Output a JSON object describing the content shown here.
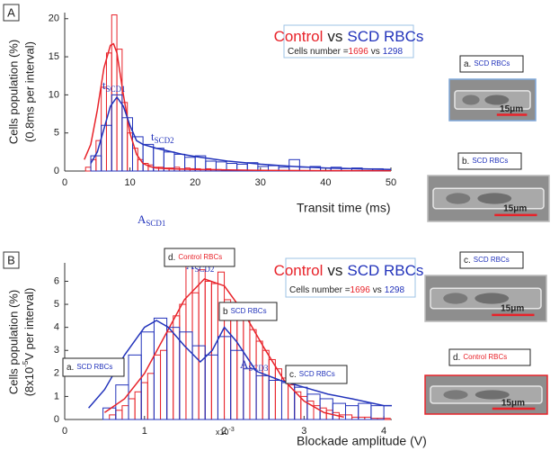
{
  "chart_data": [
    {
      "type": "histogram",
      "panel": "A",
      "ylabel": [
        "Cells population (%)",
        "(0.8ms per interval)"
      ],
      "xlabel": "Transit time (ms)",
      "xlim": [
        0,
        50
      ],
      "ylim": [
        0,
        20.8
      ],
      "xticks": [
        0,
        10,
        20,
        30,
        40,
        50
      ],
      "yticks": [
        0,
        5,
        10,
        15,
        20
      ],
      "series": [
        {
          "color": "#e8232a",
          "bins": [
            3.2,
            4,
            4.8,
            5.6,
            6.4,
            7.2,
            8,
            8.8,
            9.6,
            10.4,
            11.2,
            12,
            12.8,
            13.6,
            14.4,
            15.2,
            16,
            16.8,
            17.6,
            18.4,
            19.2,
            20,
            20.8,
            21.6,
            22.4,
            23.2,
            24,
            24.8
          ],
          "values": [
            0.5,
            1.5,
            4,
            11,
            15.5,
            20.5,
            16,
            9,
            5,
            3,
            1.5,
            1,
            0.8,
            0.5,
            0.5,
            0.4,
            0.4,
            0.5,
            0.3,
            0.4,
            0.3,
            0.3,
            0.2,
            0.3,
            0.2,
            0.2,
            0.1
          ]
        },
        {
          "color": "#2233bb",
          "bins": [
            4,
            5.6,
            7.2,
            8.8,
            10.4,
            12,
            13.6,
            15.2,
            16.8,
            18.4,
            20,
            21.6,
            23.2,
            24.8,
            26.4,
            28,
            29.6,
            31.2,
            32.8,
            34.4,
            36,
            37.6,
            39.2,
            40.8,
            42.4,
            44,
            45.6,
            47.2,
            48.8
          ],
          "values": [
            2,
            6,
            10,
            7,
            4.5,
            3.5,
            3,
            2.5,
            2.2,
            1.8,
            2,
            1.3,
            1.2,
            1,
            0.9,
            1.1,
            0.6,
            0.7,
            0.5,
            1.5,
            0.5,
            0.6,
            0.4,
            0.5,
            0.3,
            0.4,
            0.3,
            0.3
          ]
        }
      ],
      "fits": [
        {
          "color": "#e8232a",
          "x": [
            3,
            4,
            5,
            6,
            7,
            7.5,
            8,
            9,
            10,
            11,
            12,
            13,
            14,
            16,
            20,
            30,
            40,
            50
          ],
          "values": [
            1.5,
            3.5,
            8,
            13.5,
            16.5,
            16.7,
            15.5,
            10,
            5,
            2.2,
            1,
            0.6,
            0.4,
            0.3,
            0.2,
            0.1,
            0.05,
            0.05
          ]
        },
        {
          "color": "#2233bb",
          "x": [
            4,
            5,
            6,
            7,
            8,
            9,
            10,
            11,
            12,
            14,
            16,
            18,
            20,
            25,
            30,
            35,
            40,
            45,
            50
          ],
          "values": [
            1,
            2.5,
            5.5,
            8.5,
            9.7,
            8.5,
            6,
            4,
            3.5,
            3,
            2.6,
            2.2,
            1.9,
            1.3,
            0.9,
            0.6,
            0.4,
            0.3,
            0.2
          ]
        }
      ],
      "legend": {
        "control": "Control",
        "vs": "vs",
        "scd": "SCD RBCs",
        "cells": "Cells number =",
        "n_control": 1696,
        "n_vs": "vs",
        "n_scd": 1298
      },
      "peak_labels": [
        {
          "base": "t",
          "sub": "SCD1"
        },
        {
          "base": "t",
          "sub": "SCD2"
        }
      ]
    },
    {
      "type": "histogram",
      "panel": "B",
      "ylabel": [
        "Cells population (%)",
        {
          "pre": "(8x10",
          "sup": "-5",
          "post": "V per interval)"
        }
      ],
      "xlabel": "Blockade amplitude (V)",
      "xscale": {
        "pre": "x10",
        "sup": "-3"
      },
      "xlim": [
        0,
        4.1
      ],
      "ylim": [
        0,
        6.8
      ],
      "xticks": [
        0,
        1,
        2,
        3,
        4
      ],
      "yticks": [
        0,
        1,
        2,
        3,
        4,
        5,
        6
      ],
      "series": [
        {
          "color": "#e8232a",
          "bins": [
            0.56,
            0.64,
            0.72,
            0.8,
            0.88,
            0.96,
            1.04,
            1.12,
            1.2,
            1.28,
            1.36,
            1.44,
            1.52,
            1.6,
            1.68,
            1.76,
            1.84,
            1.92,
            2,
            2.08,
            2.16,
            2.24,
            2.32,
            2.4,
            2.48,
            2.56,
            2.64,
            2.72,
            2.8,
            2.88,
            2.96,
            3.04,
            3.12,
            3.2,
            3.28,
            3.36,
            3.44,
            3.52,
            3.6,
            3.68,
            3.76,
            3.84,
            3.92,
            4,
            4.08
          ],
          "values": [
            0.2,
            0.4,
            0.6,
            0.9,
            1.2,
            1.6,
            2,
            2.8,
            3,
            3.8,
            4.5,
            5,
            6.7,
            5.5,
            6.5,
            6,
            5.9,
            6.4,
            5.2,
            5,
            4.6,
            4.4,
            3.9,
            3.4,
            3,
            2.6,
            2.2,
            1.8,
            1.5,
            1.2,
            1,
            0.8,
            0.6,
            0.5,
            0.4,
            0.3,
            0.2,
            0.2,
            0.1,
            0.1,
            0.1,
            0.05,
            0.05,
            0.05
          ]
        },
        {
          "color": "#2233bb",
          "bins": [
            0.48,
            0.64,
            0.8,
            0.96,
            1.12,
            1.28,
            1.44,
            1.6,
            1.76,
            1.92,
            2.08,
            2.24,
            2.4,
            2.56,
            2.72,
            2.88,
            3.04,
            3.2,
            3.36,
            3.52,
            3.68,
            3.84,
            4
          ],
          "values": [
            0.5,
            1.5,
            2.8,
            3.8,
            4.4,
            4,
            3.8,
            3.2,
            2.8,
            3.6,
            3,
            2.2,
            1.9,
            1.7,
            1.6,
            1.4,
            1.1,
            0.9,
            0.7,
            0.6,
            0.7,
            0.6
          ]
        }
      ],
      "fits": [
        {
          "color": "#e8232a",
          "x": [
            0.5,
            0.75,
            1,
            1.25,
            1.5,
            1.75,
            2,
            2.25,
            2.5,
            2.75,
            3,
            3.25,
            3.5
          ],
          "values": [
            0.3,
            0.9,
            2,
            3.6,
            5.2,
            6.1,
            5.8,
            4.6,
            3.1,
            1.7,
            0.8,
            0.3,
            0.1
          ]
        },
        {
          "color": "#2233bb",
          "x": [
            0.3,
            0.5,
            0.75,
            1,
            1.15,
            1.3,
            1.5,
            1.7,
            1.85,
            2,
            2.15,
            2.4,
            2.7,
            3,
            3.3,
            3.6,
            4,
            4.1
          ],
          "values": [
            0.5,
            1.3,
            2.8,
            4,
            4.3,
            4,
            3.2,
            2.5,
            3,
            4,
            3.4,
            2.1,
            1.7,
            1.4,
            1.1,
            0.9,
            0.6,
            0.6
          ]
        }
      ],
      "legend": {
        "control": "Control",
        "vs": "vs",
        "scd": "SCD RBCs",
        "cells": "Cells number =",
        "n_control": 1696,
        "n_vs": "vs",
        "n_scd": 1298
      },
      "peak_labels": [
        {
          "base": "A",
          "sub": "SCD1"
        },
        {
          "base": "A",
          "sub": "SCD2"
        },
        {
          "base": "A",
          "sub": "SCD3"
        }
      ],
      "callouts": [
        {
          "letter": "a.",
          "text": "SCD RBCs",
          "color": "#2233bb"
        },
        {
          "letter": "b",
          "text": "SCD RBCs",
          "color": "#2233bb"
        },
        {
          "letter": "c.",
          "text": "SCD RBCs",
          "color": "#2233bb"
        },
        {
          "letter": "d.",
          "text": "Control RBCs",
          "color": "#e8232a"
        }
      ]
    }
  ],
  "images": [
    {
      "letter": "a.",
      "text": "SCD RBCs",
      "color": "#2233bb",
      "scale": "15μm"
    },
    {
      "letter": "b.",
      "text": "SCD RBCs",
      "color": "#2233bb",
      "scale": "15μm"
    },
    {
      "letter": "c.",
      "text": "SCD RBCs",
      "color": "#2233bb",
      "scale": "15μm"
    },
    {
      "letter": "d.",
      "text": "Control RBCs",
      "color": "#e8232a",
      "scale": "15μm"
    }
  ]
}
